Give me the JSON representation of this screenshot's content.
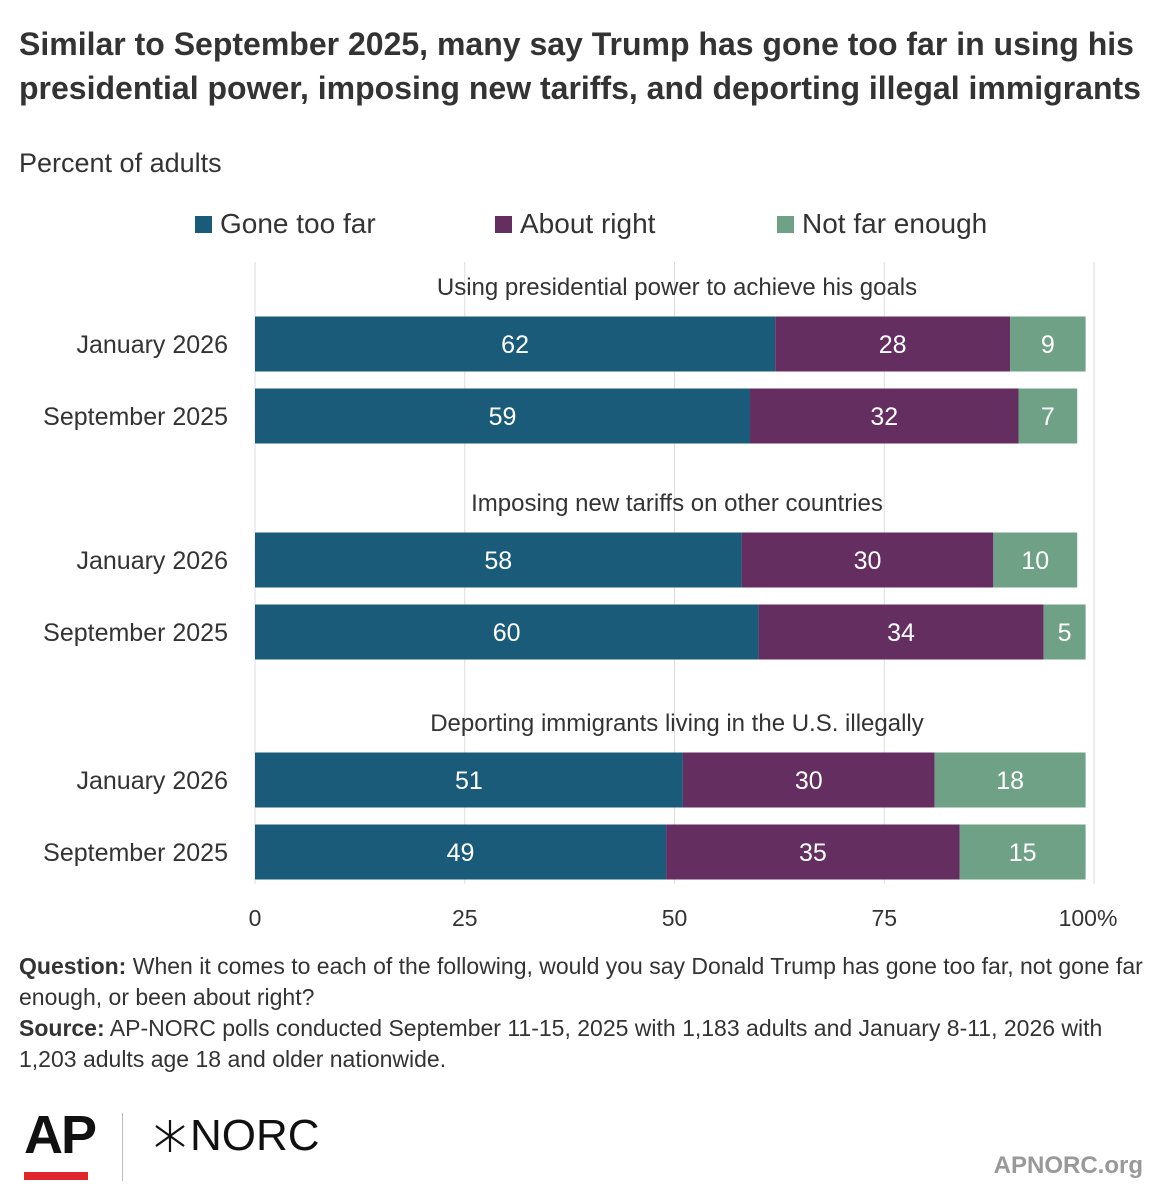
{
  "title": "Similar to September 2025, many say Trump has gone too far in using his presidential power, imposing new tariffs, and deporting illegal immigrants",
  "subtitle": "Percent of adults",
  "colors": {
    "gone_too_far": "#1a5b7a",
    "about_right": "#652e60",
    "not_far_enough": "#6fa186",
    "grid": "#dddddd",
    "text": "#333333"
  },
  "chart_data": {
    "type": "bar",
    "orientation": "horizontal",
    "stacked": true,
    "xlim": [
      0,
      100
    ],
    "x_ticks": [
      "0",
      "25",
      "50",
      "75",
      "100%"
    ],
    "legend": [
      "Gone too far",
      "About right",
      "Not far enough"
    ],
    "legend_position": "top",
    "grid": true,
    "groups": [
      {
        "label": "Using presidential power to achieve his goals",
        "rows": [
          {
            "label": "January 2026",
            "values": [
              62,
              28,
              9
            ]
          },
          {
            "label": "September 2025",
            "values": [
              59,
              32,
              7
            ]
          }
        ]
      },
      {
        "label": "Imposing new tariffs on other countries",
        "rows": [
          {
            "label": "January 2026",
            "values": [
              58,
              30,
              10
            ]
          },
          {
            "label": "September 2025",
            "values": [
              60,
              34,
              5
            ]
          }
        ]
      },
      {
        "label": "Deporting immigrants living in the U.S. illegally",
        "rows": [
          {
            "label": "January 2026",
            "values": [
              51,
              30,
              18
            ]
          },
          {
            "label": "September 2025",
            "values": [
              49,
              35,
              15
            ]
          }
        ]
      }
    ]
  },
  "footer": {
    "question_label": "Question:",
    "question_text": "When it comes to each of the following, would you say Donald Trump has gone too far, not gone far enough, or been about right?",
    "source_label": "Source:",
    "source_text": "AP-NORC polls conducted September 11-15, 2025 with 1,183 adults and January 8-11, 2026 with 1,203 adults age 18 and older nationwide."
  },
  "logos": {
    "ap": "AP",
    "norc": "NORC"
  },
  "site": "APNORC.org"
}
